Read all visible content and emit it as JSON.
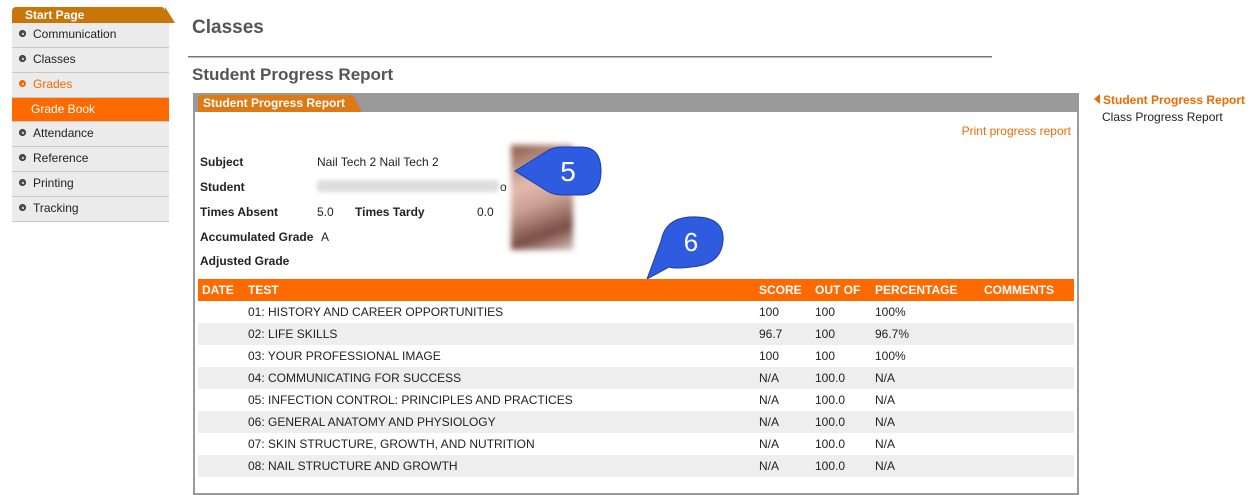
{
  "sidebar": {
    "start_label": "Start Page",
    "items": [
      {
        "label": "Communication"
      },
      {
        "label": "Classes"
      },
      {
        "label": "Grades"
      },
      {
        "label": "Grade Book"
      },
      {
        "label": "Attendance"
      },
      {
        "label": "Reference"
      },
      {
        "label": "Printing"
      },
      {
        "label": "Tracking"
      }
    ]
  },
  "main": {
    "title": "Classes",
    "section_title": "Student Progress Report",
    "panel_tab": "Student Progress Report",
    "print_link": "Print progress report",
    "info": {
      "subject_label": "Subject",
      "subject_value": "Nail Tech 2 Nail Tech 2",
      "student_label": "Student",
      "student_suffix": "o",
      "absent_label": "Times Absent",
      "absent_value": "5.0",
      "tardy_label": "Times Tardy",
      "tardy_value": "0.0",
      "accum_label": "Accumulated Grade",
      "accum_value": "A",
      "adjusted_label": "Adjusted Grade"
    },
    "callouts": [
      "5",
      "6"
    ],
    "table": {
      "headers": [
        "DATE",
        "TEST",
        "SCORE",
        "OUT OF",
        "PERCENTAGE",
        "COMMENTS"
      ],
      "rows": [
        {
          "date": "",
          "test": "01: HISTORY AND CAREER OPPORTUNITIES",
          "score": "100",
          "out_of": "100",
          "pct": "100%",
          "comments": ""
        },
        {
          "date": "",
          "test": "02: LIFE SKILLS",
          "score": "96.7",
          "out_of": "100",
          "pct": "96.7%",
          "comments": ""
        },
        {
          "date": "",
          "test": "03: YOUR PROFESSIONAL IMAGE",
          "score": "100",
          "out_of": "100",
          "pct": "100%",
          "comments": ""
        },
        {
          "date": "",
          "test": "04: COMMUNICATING FOR SUCCESS",
          "score": "N/A",
          "out_of": "100.0",
          "pct": "N/A",
          "comments": ""
        },
        {
          "date": "",
          "test": "05: INFECTION CONTROL: PRINCIPLES AND PRACTICES",
          "score": "N/A",
          "out_of": "100.0",
          "pct": "N/A",
          "comments": ""
        },
        {
          "date": "",
          "test": "06: GENERAL ANATOMY AND PHYSIOLOGY",
          "score": "N/A",
          "out_of": "100.0",
          "pct": "N/A",
          "comments": ""
        },
        {
          "date": "",
          "test": "07: SKIN STRUCTURE, GROWTH, AND NUTRITION",
          "score": "N/A",
          "out_of": "100.0",
          "pct": "N/A",
          "comments": ""
        },
        {
          "date": "",
          "test": "08: NAIL STRUCTURE AND GROWTH",
          "score": "N/A",
          "out_of": "100.0",
          "pct": "N/A",
          "comments": ""
        }
      ]
    }
  },
  "right_links": {
    "active": "Student Progress Report",
    "other": "Class Progress Report"
  },
  "colors": {
    "accent": "#ff6a00",
    "callout": "#2e5be0"
  }
}
